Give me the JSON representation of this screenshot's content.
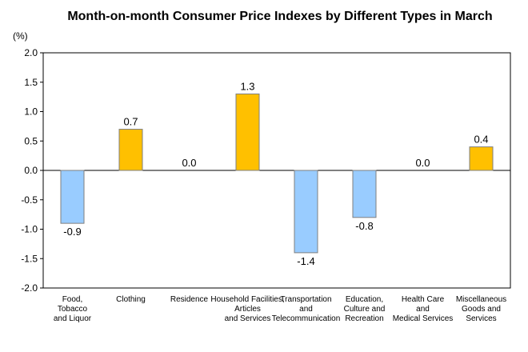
{
  "chart_data": {
    "type": "bar",
    "title": "Month-on-month Consumer Price Indexes by Different Types in March",
    "unit": "(%)",
    "ylim": [
      -2.0,
      2.0
    ],
    "yticks": [
      "2.0",
      "1.5",
      "1.0",
      "0.5",
      "0.0",
      "-0.5",
      "-1.0",
      "-1.5",
      "-2.0"
    ],
    "categories": [
      [
        "Food,",
        "Tobacco",
        "and Liquor"
      ],
      [
        "Clothing"
      ],
      [
        "Residence"
      ],
      [
        "Household Facilities,",
        "Articles",
        "and Services"
      ],
      [
        "Transportation",
        "and",
        "Telecommunication"
      ],
      [
        "Education,",
        "Culture and",
        "Recreation"
      ],
      [
        "Health Care",
        "and",
        "Medical Services"
      ],
      [
        "Miscellaneous",
        "Goods and",
        "Services"
      ]
    ],
    "values": [
      -0.9,
      0.7,
      0.0,
      1.3,
      -1.4,
      -0.8,
      0.0,
      0.4
    ],
    "value_labels": [
      "-0.9",
      "0.7",
      "0.0",
      "1.3",
      "-1.4",
      "-0.8",
      "0.0",
      "0.4"
    ],
    "colors": {
      "positive": "#FFC000",
      "negative": "#99CCFF",
      "border": "#7F7F7F"
    },
    "grid": false,
    "legend": "none"
  }
}
